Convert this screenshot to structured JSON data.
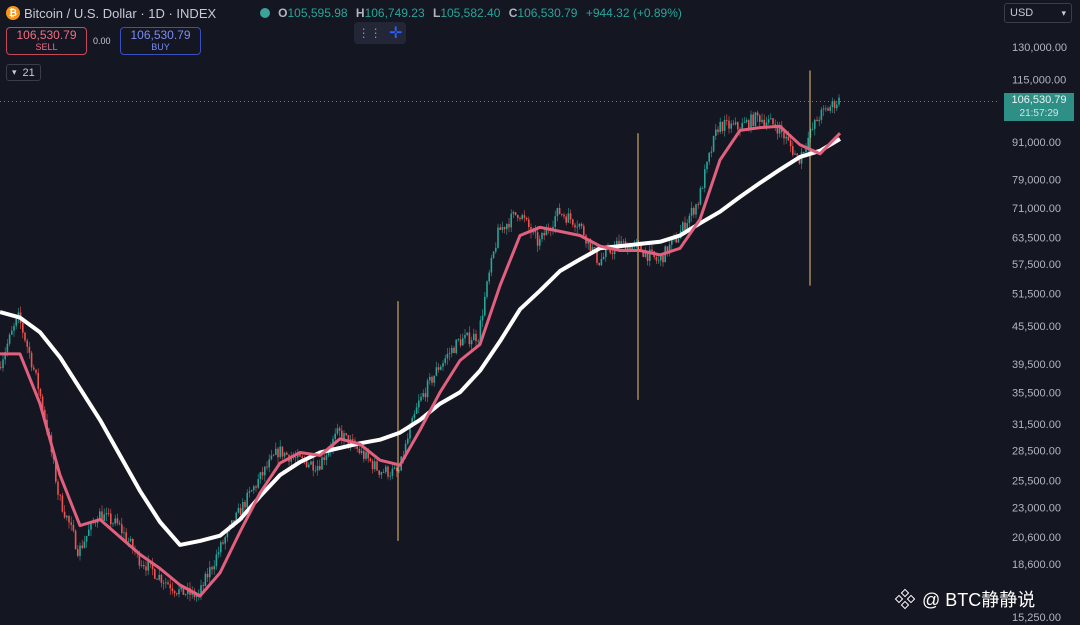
{
  "header": {
    "symbol_title": "Bitcoin / U.S. Dollar · 1D · INDEX",
    "coin_glyph": "₿",
    "ohlc": [
      {
        "key": "O",
        "value": "105,595.98"
      },
      {
        "key": "H",
        "value": "106,749.23"
      },
      {
        "key": "L",
        "value": "105,582.40"
      },
      {
        "key": "C",
        "value": "106,530.79"
      }
    ],
    "change": "+944.32 (+0.89%)"
  },
  "trade": {
    "sell_price": "106,530.79",
    "sell_label": "SELL",
    "spread": "0.00",
    "buy_price": "106,530.79",
    "buy_label": "BUY"
  },
  "indicator": {
    "value": "21"
  },
  "currency": {
    "value": "USD"
  },
  "price_label": {
    "price": "106,530.79",
    "countdown": "21:57:29"
  },
  "watermark": {
    "text": "@ BTC静静说"
  },
  "colors": {
    "background": "#141622",
    "up": "#26a69a",
    "down": "#ef5350",
    "ema_fast": "#e0607e",
    "ma_slow": "#ffffff",
    "vline": "#f0c070",
    "price_tag": "#2e8f86"
  },
  "chart_data": {
    "type": "line",
    "y_scale": "log",
    "ylim": [
      15250,
      140000
    ],
    "y_ticks": [
      130000,
      115000,
      91000,
      79000,
      71000,
      63500,
      57500,
      51500,
      45500,
      39500,
      35500,
      31500,
      28500,
      25500,
      23000,
      20600,
      18600,
      15250
    ],
    "y_tick_labels": [
      "130,000.00",
      "115,000.00",
      "91,000.00",
      "79,000.00",
      "71,000.00",
      "63,500.00",
      "57,500.00",
      "51,500.00",
      "45,500.00",
      "39,500.00",
      "35,500.00",
      "31,500.00",
      "28,500.00",
      "25,500.00",
      "23,000.00",
      "20,600.00",
      "18,600.00",
      "15,250.00"
    ],
    "last_price": 106530.79,
    "x": [
      0,
      20,
      40,
      60,
      80,
      100,
      120,
      140,
      160,
      180,
      200,
      220,
      240,
      260,
      280,
      300,
      320,
      340,
      360,
      380,
      400,
      420,
      440,
      460,
      480,
      500,
      520,
      540,
      560,
      580,
      600,
      620,
      640,
      660,
      680,
      700,
      720,
      740,
      760,
      780,
      800,
      820,
      840
    ],
    "price": [
      39000,
      47000,
      36000,
      24000,
      19500,
      22500,
      21500,
      19000,
      17800,
      16800,
      16500,
      19500,
      22500,
      25500,
      28500,
      27500,
      27000,
      30500,
      28500,
      26500,
      26200,
      34000,
      39000,
      43000,
      44000,
      65000,
      70000,
      62000,
      70000,
      67000,
      58000,
      62000,
      61000,
      58000,
      64000,
      73000,
      97000,
      96000,
      100000,
      96000,
      85000,
      100000,
      106530
    ],
    "ema_fast": [
      41000,
      41000,
      34000,
      26000,
      21500,
      22000,
      20600,
      19300,
      18300,
      17200,
      16500,
      18000,
      21000,
      24300,
      27200,
      28300,
      28000,
      29800,
      29200,
      27500,
      27000,
      30800,
      35500,
      40000,
      42500,
      53000,
      64000,
      66000,
      65000,
      64000,
      61500,
      60500,
      60500,
      59500,
      61000,
      68000,
      85000,
      95000,
      96000,
      96500,
      90000,
      87000,
      94000
    ],
    "ma_slow": [
      48000,
      47000,
      44500,
      40500,
      36000,
      32000,
      28000,
      24500,
      21800,
      20000,
      20300,
      20700,
      22000,
      24000,
      26000,
      27300,
      28300,
      28800,
      29300,
      29700,
      30500,
      32000,
      34000,
      35500,
      38500,
      43000,
      48500,
      52000,
      56000,
      58500,
      61000,
      61500,
      62000,
      62500,
      64000,
      67000,
      70000,
      74000,
      78000,
      82000,
      86000,
      88000,
      92000
    ],
    "vlines": [
      {
        "x": 398,
        "high": 50000,
        "low": 20300
      },
      {
        "x": 638,
        "high": 94000,
        "low": 34500
      },
      {
        "x": 810,
        "high": 119000,
        "low": 53000
      }
    ]
  }
}
